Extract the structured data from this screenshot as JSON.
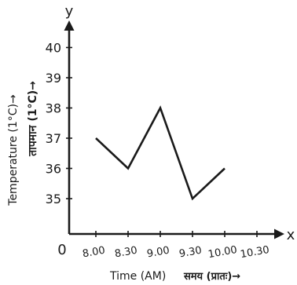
{
  "chart_data": {
    "type": "line",
    "xlabel": "Time (AM)",
    "xlabel_hindi": "समय (प्रातः)→",
    "ylabel": "Temperature (1°C)→",
    "ylabel_hindi": "तापमान (1°C)→",
    "x_axis_letter": "x",
    "y_axis_letter": "y",
    "origin_label": "0",
    "x_ticks": [
      "8.00",
      "8.30",
      "9.00",
      "9.30",
      "10.00",
      "10.30"
    ],
    "y_ticks": [
      35,
      36,
      37,
      38,
      39,
      40
    ],
    "ylim": [
      34,
      41
    ],
    "grid": false,
    "series": [
      {
        "x": [
          "8.00",
          "8.30",
          "9.00",
          "9.30",
          "10.00"
        ],
        "values": [
          37,
          36,
          38,
          35,
          36
        ],
        "color": "#1a1a1a"
      }
    ]
  }
}
